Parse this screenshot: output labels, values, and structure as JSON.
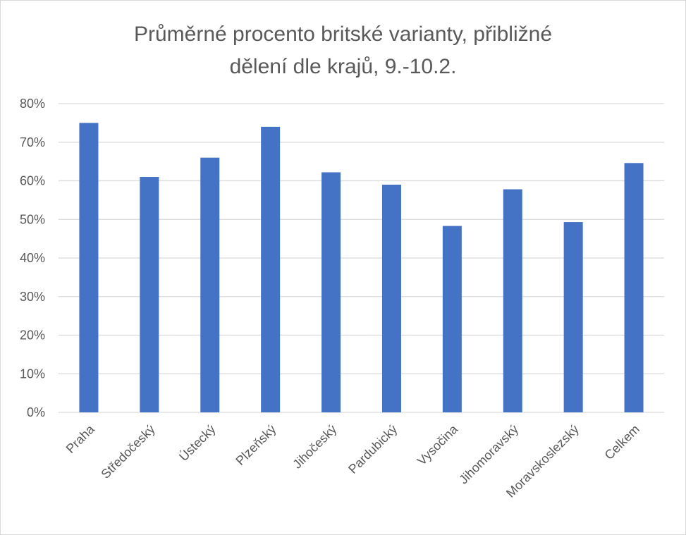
{
  "chart_data": {
    "type": "bar",
    "title_line1": "Průměrné procento britské varianty, přibližné",
    "title_line2": "dělení dle krajů, 9.-10.2.",
    "xlabel": "",
    "ylabel": "",
    "categories": [
      "Praha",
      "Středočeský",
      "Ústecký",
      "Plzeňský",
      "Jihočeský",
      "Pardubický",
      "Vysočina",
      "Jihomoravský",
      "Moravskoslezský",
      "Celkem"
    ],
    "values": [
      75,
      61,
      66,
      74,
      62.2,
      59,
      48.3,
      57.8,
      49.3,
      64.6
    ],
    "ylim": [
      0,
      80
    ],
    "yticks": [
      "0%",
      "10%",
      "20%",
      "30%",
      "40%",
      "50%",
      "60%",
      "70%",
      "80%"
    ],
    "grid": true,
    "legend": "none",
    "bar_color": "#4472c4",
    "grid_color": "#d9d9d9",
    "text_color": "#595959"
  }
}
